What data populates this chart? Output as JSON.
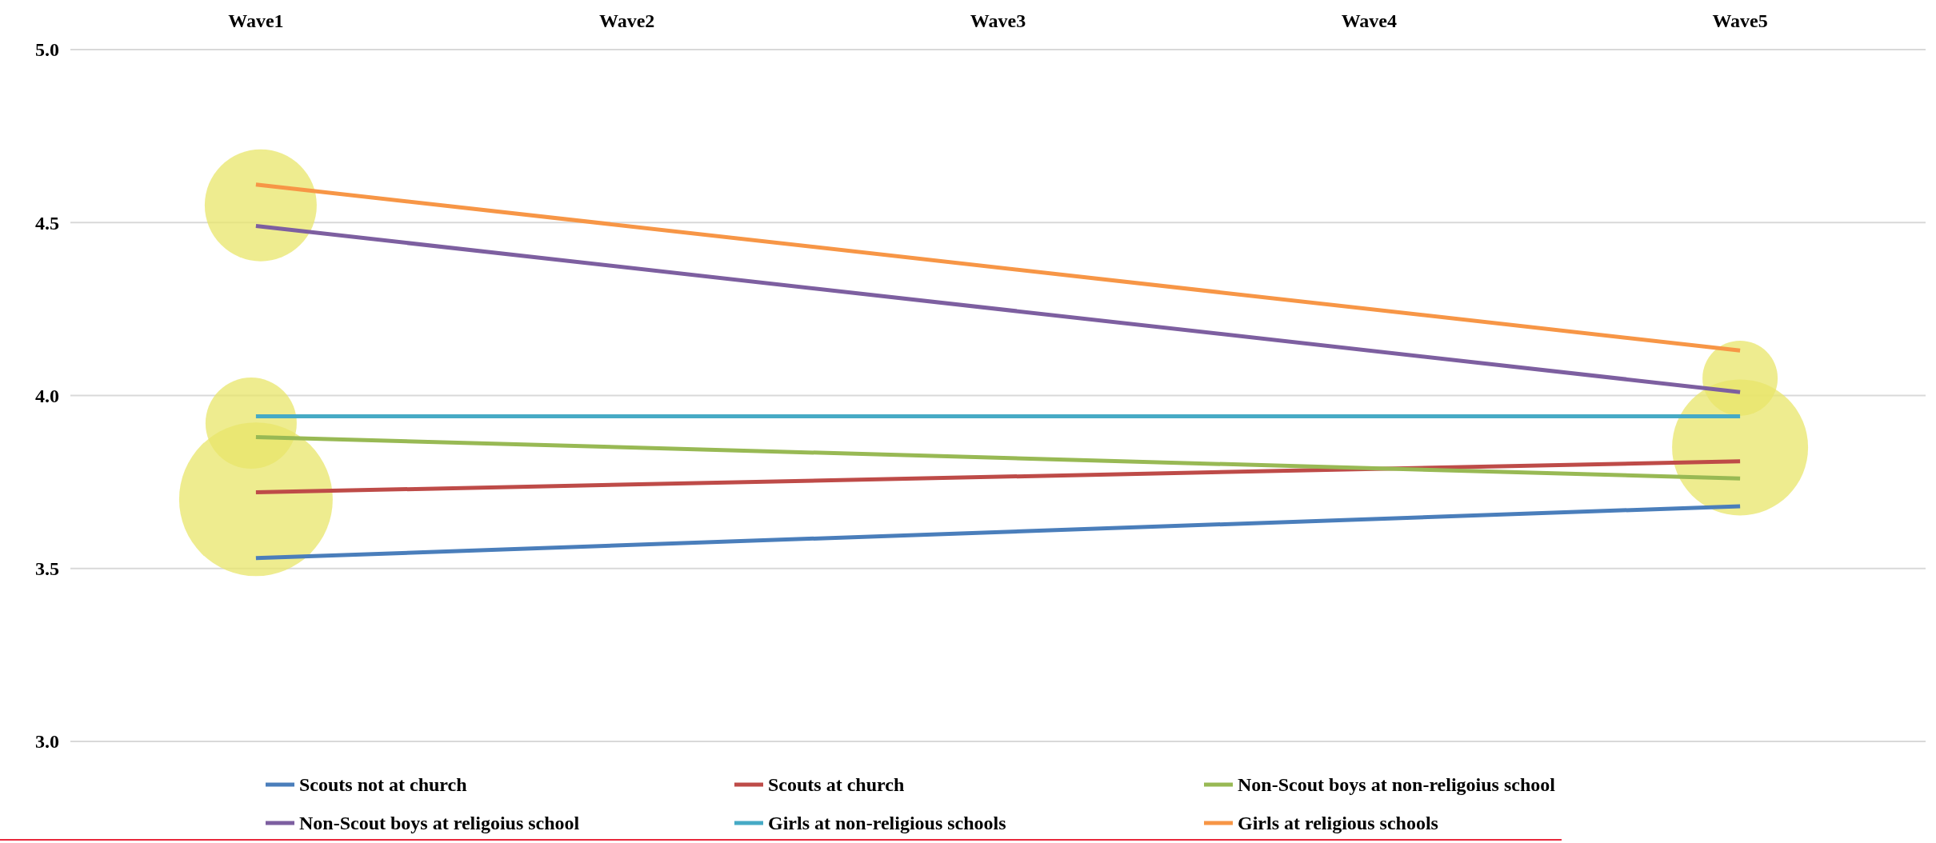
{
  "chart_data": {
    "type": "line",
    "categories": [
      "Wave1",
      "Wave2",
      "Wave3",
      "Wave4",
      "Wave5"
    ],
    "series": [
      {
        "name": "Scouts not at church",
        "color": "#4a7ebb",
        "values": [
          3.53,
          null,
          null,
          null,
          3.68
        ]
      },
      {
        "name": "Scouts at church",
        "color": "#be4b48",
        "values": [
          3.72,
          null,
          null,
          null,
          3.81
        ]
      },
      {
        "name": "Non-Scout boys at non-religoius school",
        "color": "#98b954",
        "values": [
          3.88,
          null,
          null,
          null,
          3.76
        ]
      },
      {
        "name": "Non-Scout boys at religoius school",
        "color": "#7d5fa0",
        "values": [
          4.49,
          null,
          null,
          null,
          4.01
        ]
      },
      {
        "name": "Girls at non-religious schools",
        "color": "#46aac5",
        "values": [
          3.94,
          null,
          null,
          null,
          3.94
        ]
      },
      {
        "name": "Girls at religious schools",
        "color": "#f79646",
        "values": [
          4.61,
          null,
          null,
          null,
          4.13
        ]
      }
    ],
    "ylim": [
      3.0,
      5.0
    ],
    "yticks": [
      {
        "value": 3.0,
        "label": "3.0"
      },
      {
        "value": 3.5,
        "label": "3.5"
      },
      {
        "value": 4.0,
        "label": "4.0"
      },
      {
        "value": 4.5,
        "label": "4.5"
      },
      {
        "value": 5.0,
        "label": "5.0"
      }
    ],
    "grid": "y",
    "legend": "bottom",
    "marker": "none",
    "line_style": "solid"
  }
}
